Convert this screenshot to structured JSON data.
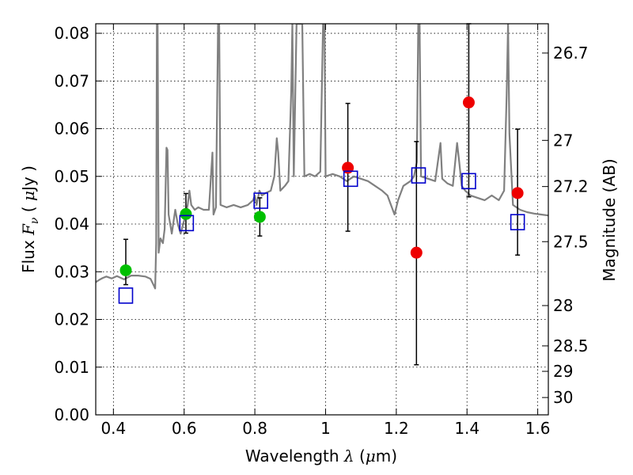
{
  "chart_data": {
    "type": "scatter",
    "xlabel": {
      "prefix": "Wavelength  ",
      "symbol": "λ",
      "unit_open": " (",
      "unit_mu": "μ",
      "unit_rest": "m)"
    },
    "ylabel": {
      "prefix": "Flux  ",
      "symbol": "F",
      "subscript": "ν",
      "unit_open": "  ( ",
      "unit_mu": "μ",
      "unit_rest": "Jy )"
    },
    "y2label": "Magnitude (AB)",
    "xlim": [
      0.35,
      1.63
    ],
    "ylim": [
      0.0,
      0.082
    ],
    "x_ticks": [
      {
        "value": 0.4,
        "label": "0.4"
      },
      {
        "value": 0.6,
        "label": "0.6"
      },
      {
        "value": 0.8,
        "label": "0.8"
      },
      {
        "value": 1.0,
        "label": "1"
      },
      {
        "value": 1.2,
        "label": "1.2"
      },
      {
        "value": 1.4,
        "label": "1.4"
      },
      {
        "value": 1.6,
        "label": "1.6"
      }
    ],
    "y_ticks": [
      {
        "value": 0.0,
        "label": "0.00"
      },
      {
        "value": 0.01,
        "label": "0.01"
      },
      {
        "value": 0.02,
        "label": "0.02"
      },
      {
        "value": 0.03,
        "label": "0.03"
      },
      {
        "value": 0.04,
        "label": "0.04"
      },
      {
        "value": 0.05,
        "label": "0.05"
      },
      {
        "value": 0.06,
        "label": "0.06"
      },
      {
        "value": 0.07,
        "label": "0.07"
      },
      {
        "value": 0.08,
        "label": "0.08"
      }
    ],
    "y2_ticks": [
      {
        "value": 26.7,
        "label": "26.7"
      },
      {
        "value": 27,
        "label": "27"
      },
      {
        "value": 27.2,
        "label": "27.2"
      },
      {
        "value": 27.5,
        "label": "27.5"
      },
      {
        "value": 28,
        "label": "28"
      },
      {
        "value": 28.5,
        "label": "28.5"
      },
      {
        "value": 29,
        "label": "29"
      },
      {
        "value": 30,
        "label": "30"
      }
    ],
    "grid": true,
    "colors": {
      "green": "#00c000",
      "red": "#ee0000",
      "blue": "#0000cc",
      "sed": "#808080",
      "errorbar": "#000000"
    },
    "series": [
      {
        "marker": "circle",
        "color": "green",
        "points": [
          {
            "x": 0.435,
            "y": 0.0303,
            "yerr_low": 0.003,
            "yerr_high": 0.0065
          },
          {
            "x": 0.605,
            "y": 0.0421,
            "yerr_low": 0.004,
            "yerr_high": 0.0043
          },
          {
            "x": 0.814,
            "y": 0.0415,
            "yerr_low": 0.004,
            "yerr_high": 0.004
          }
        ]
      },
      {
        "marker": "circle",
        "color": "red",
        "points": [
          {
            "x": 1.063,
            "y": 0.0518,
            "yerr_low": 0.0133,
            "yerr_high": 0.0135
          },
          {
            "x": 1.257,
            "y": 0.034,
            "yerr_low": 0.0235,
            "yerr_high": 0.0233
          },
          {
            "x": 1.405,
            "y": 0.0655,
            "yerr_low": 0.0198,
            "yerr_high": 0.0165
          },
          {
            "x": 1.543,
            "y": 0.0465,
            "yerr_low": 0.013,
            "yerr_high": 0.0134
          }
        ]
      },
      {
        "marker": "square",
        "color": "blue",
        "points": [
          {
            "x": 0.435,
            "y": 0.025
          },
          {
            "x": 0.607,
            "y": 0.0402
          },
          {
            "x": 0.817,
            "y": 0.0449
          },
          {
            "x": 1.071,
            "y": 0.0495
          },
          {
            "x": 1.263,
            "y": 0.0502
          },
          {
            "x": 1.405,
            "y": 0.049
          },
          {
            "x": 1.543,
            "y": 0.0404
          }
        ]
      }
    ],
    "sed_line": [
      [
        0.35,
        0.0278
      ],
      [
        0.36,
        0.0283
      ],
      [
        0.37,
        0.0287
      ],
      [
        0.38,
        0.029
      ],
      [
        0.395,
        0.0286
      ],
      [
        0.41,
        0.0291
      ],
      [
        0.43,
        0.0284
      ],
      [
        0.45,
        0.0292
      ],
      [
        0.47,
        0.0292
      ],
      [
        0.49,
        0.029
      ],
      [
        0.505,
        0.0285
      ],
      [
        0.515,
        0.027
      ],
      [
        0.518,
        0.0265
      ],
      [
        0.521,
        0.036
      ],
      [
        0.523,
        0.082
      ],
      [
        0.525,
        0.082
      ],
      [
        0.528,
        0.034
      ],
      [
        0.533,
        0.037
      ],
      [
        0.54,
        0.036
      ],
      [
        0.545,
        0.039
      ],
      [
        0.55,
        0.056
      ],
      [
        0.553,
        0.0555
      ],
      [
        0.556,
        0.042
      ],
      [
        0.565,
        0.038
      ],
      [
        0.575,
        0.043
      ],
      [
        0.582,
        0.04
      ],
      [
        0.59,
        0.038
      ],
      [
        0.597,
        0.04
      ],
      [
        0.603,
        0.0415
      ],
      [
        0.61,
        0.044
      ],
      [
        0.615,
        0.047
      ],
      [
        0.62,
        0.044
      ],
      [
        0.63,
        0.043
      ],
      [
        0.64,
        0.0435
      ],
      [
        0.655,
        0.043
      ],
      [
        0.67,
        0.043
      ],
      [
        0.68,
        0.055
      ],
      [
        0.683,
        0.042
      ],
      [
        0.69,
        0.0435
      ],
      [
        0.696,
        0.082
      ],
      [
        0.699,
        0.082
      ],
      [
        0.703,
        0.044
      ],
      [
        0.72,
        0.0435
      ],
      [
        0.74,
        0.044
      ],
      [
        0.76,
        0.0435
      ],
      [
        0.78,
        0.044
      ],
      [
        0.795,
        0.045
      ],
      [
        0.8,
        0.046
      ],
      [
        0.805,
        0.044
      ],
      [
        0.813,
        0.047
      ],
      [
        0.82,
        0.046
      ],
      [
        0.83,
        0.0465
      ],
      [
        0.845,
        0.047
      ],
      [
        0.855,
        0.05
      ],
      [
        0.862,
        0.058
      ],
      [
        0.866,
        0.055
      ],
      [
        0.872,
        0.047
      ],
      [
        0.885,
        0.048
      ],
      [
        0.895,
        0.049
      ],
      [
        0.903,
        0.068
      ],
      [
        0.906,
        0.082
      ],
      [
        0.91,
        0.05
      ],
      [
        0.918,
        0.082
      ],
      [
        0.926,
        0.082
      ],
      [
        0.934,
        0.082
      ],
      [
        0.94,
        0.05
      ],
      [
        0.955,
        0.0505
      ],
      [
        0.97,
        0.05
      ],
      [
        0.985,
        0.051
      ],
      [
        0.993,
        0.082
      ],
      [
        0.997,
        0.082
      ],
      [
        1.0,
        0.05
      ],
      [
        1.02,
        0.0505
      ],
      [
        1.04,
        0.05
      ],
      [
        1.06,
        0.049
      ],
      [
        1.08,
        0.05
      ],
      [
        1.1,
        0.0495
      ],
      [
        1.12,
        0.049
      ],
      [
        1.14,
        0.048
      ],
      [
        1.16,
        0.047
      ],
      [
        1.175,
        0.046
      ],
      [
        1.185,
        0.044
      ],
      [
        1.195,
        0.042
      ],
      [
        1.205,
        0.045
      ],
      [
        1.22,
        0.048
      ],
      [
        1.24,
        0.049
      ],
      [
        1.25,
        0.05
      ],
      [
        1.258,
        0.053
      ],
      [
        1.262,
        0.082
      ],
      [
        1.266,
        0.082
      ],
      [
        1.27,
        0.05
      ],
      [
        1.29,
        0.0495
      ],
      [
        1.31,
        0.049
      ],
      [
        1.325,
        0.057
      ],
      [
        1.33,
        0.0495
      ],
      [
        1.345,
        0.0485
      ],
      [
        1.36,
        0.048
      ],
      [
        1.372,
        0.057
      ],
      [
        1.378,
        0.053
      ],
      [
        1.385,
        0.048
      ],
      [
        1.395,
        0.047
      ],
      [
        1.41,
        0.046
      ],
      [
        1.43,
        0.0455
      ],
      [
        1.45,
        0.045
      ],
      [
        1.47,
        0.046
      ],
      [
        1.49,
        0.045
      ],
      [
        1.505,
        0.047
      ],
      [
        1.512,
        0.067
      ],
      [
        1.516,
        0.082
      ],
      [
        1.52,
        0.059
      ],
      [
        1.53,
        0.044
      ],
      [
        1.55,
        0.043
      ],
      [
        1.57,
        0.0425
      ],
      [
        1.59,
        0.0422
      ],
      [
        1.61,
        0.042
      ],
      [
        1.63,
        0.0418
      ]
    ]
  }
}
